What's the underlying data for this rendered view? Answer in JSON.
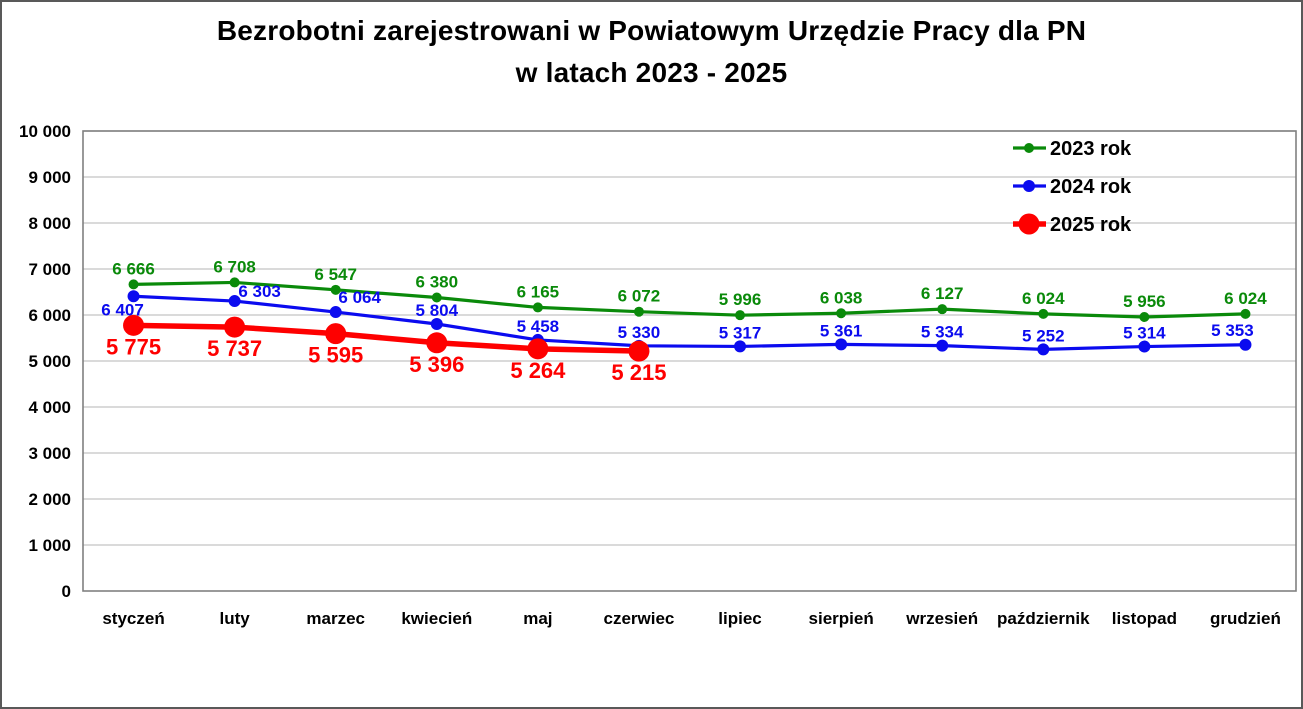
{
  "page": {
    "background": "#FFFFFF",
    "frame_color": "#595959"
  },
  "title": {
    "line1": "Bezrobotni zarejestrowani w Powiatowym Urzędzie Pracy dla PN",
    "line2": "w latach 2023 - 2025"
  },
  "chart_data": {
    "type": "line",
    "title": "Bezrobotni zarejestrowani w Powiatowym Urzędzie Pracy dla PN w latach 2023 - 2025",
    "categories": [
      "styczeń",
      "luty",
      "marzec",
      "kwiecień",
      "maj",
      "czerwiec",
      "lipiec",
      "sierpień",
      "wrzesień",
      "październik",
      "listopad",
      "grudzień"
    ],
    "series": [
      {
        "name": "2023 rok",
        "color": "#0A8A0A",
        "line_width": 3.2,
        "marker_radius": 5,
        "label_font_size": 17,
        "label_default_offset": [
          0,
          -10
        ],
        "label_offsets": {},
        "values": [
          6666,
          6708,
          6547,
          6380,
          6165,
          6072,
          5996,
          6038,
          6127,
          6024,
          5956,
          6024
        ]
      },
      {
        "name": "2024 rok",
        "color": "#0B0BEF",
        "line_width": 3.2,
        "marker_radius": 6,
        "label_font_size": 17,
        "label_default_offset": [
          0,
          -8
        ],
        "label_offsets": {
          "0": [
            -11,
            19
          ],
          "1": [
            25,
            -4
          ],
          "2": [
            24,
            -9
          ],
          "11": [
            -13,
            -9
          ]
        },
        "values": [
          6407,
          6303,
          6064,
          5804,
          5458,
          5330,
          5317,
          5361,
          5334,
          5252,
          5314,
          5353
        ]
      },
      {
        "name": "2025 rok",
        "color": "#FE0000",
        "line_width": 5.5,
        "marker_radius": 10.5,
        "label_font_size": 22,
        "label_default_offset": [
          0,
          29
        ],
        "label_offsets": {},
        "values": [
          5775,
          5737,
          5595,
          5396,
          5264,
          5215
        ]
      }
    ],
    "xlabel": "",
    "ylabel": "",
    "ylim": [
      0,
      10000
    ],
    "ytick_step": 1000,
    "ytick_labels": [
      "0",
      "1 000",
      "2 000",
      "3 000",
      "4 000",
      "5 000",
      "6 000",
      "7 000",
      "8 000",
      "9 000",
      "10 000"
    ],
    "grid": true,
    "gridline_color": "#C3C3C3",
    "plot_border_color": "#808080",
    "axis_text_color": "#000000",
    "legend_position": "top-right",
    "legend_entries": [
      "2023 rok",
      "2024 rok",
      "2025 rok"
    ],
    "number_format": "space-thousands"
  }
}
